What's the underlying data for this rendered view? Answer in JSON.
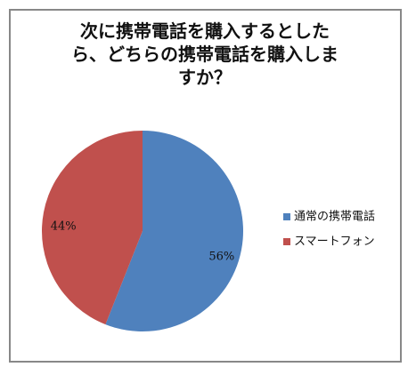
{
  "chart_data": {
    "type": "pie",
    "title": "次に携帯電話を購入するとしたら、どちらの携帯電話を購入しますか？",
    "categories": [
      "通常の携帯電話",
      "スマートフォン"
    ],
    "values": [
      56,
      44
    ],
    "value_labels": [
      "56%",
      "44%"
    ],
    "colors": [
      "#4f81bd",
      "#c0504d"
    ],
    "legend": "right"
  }
}
